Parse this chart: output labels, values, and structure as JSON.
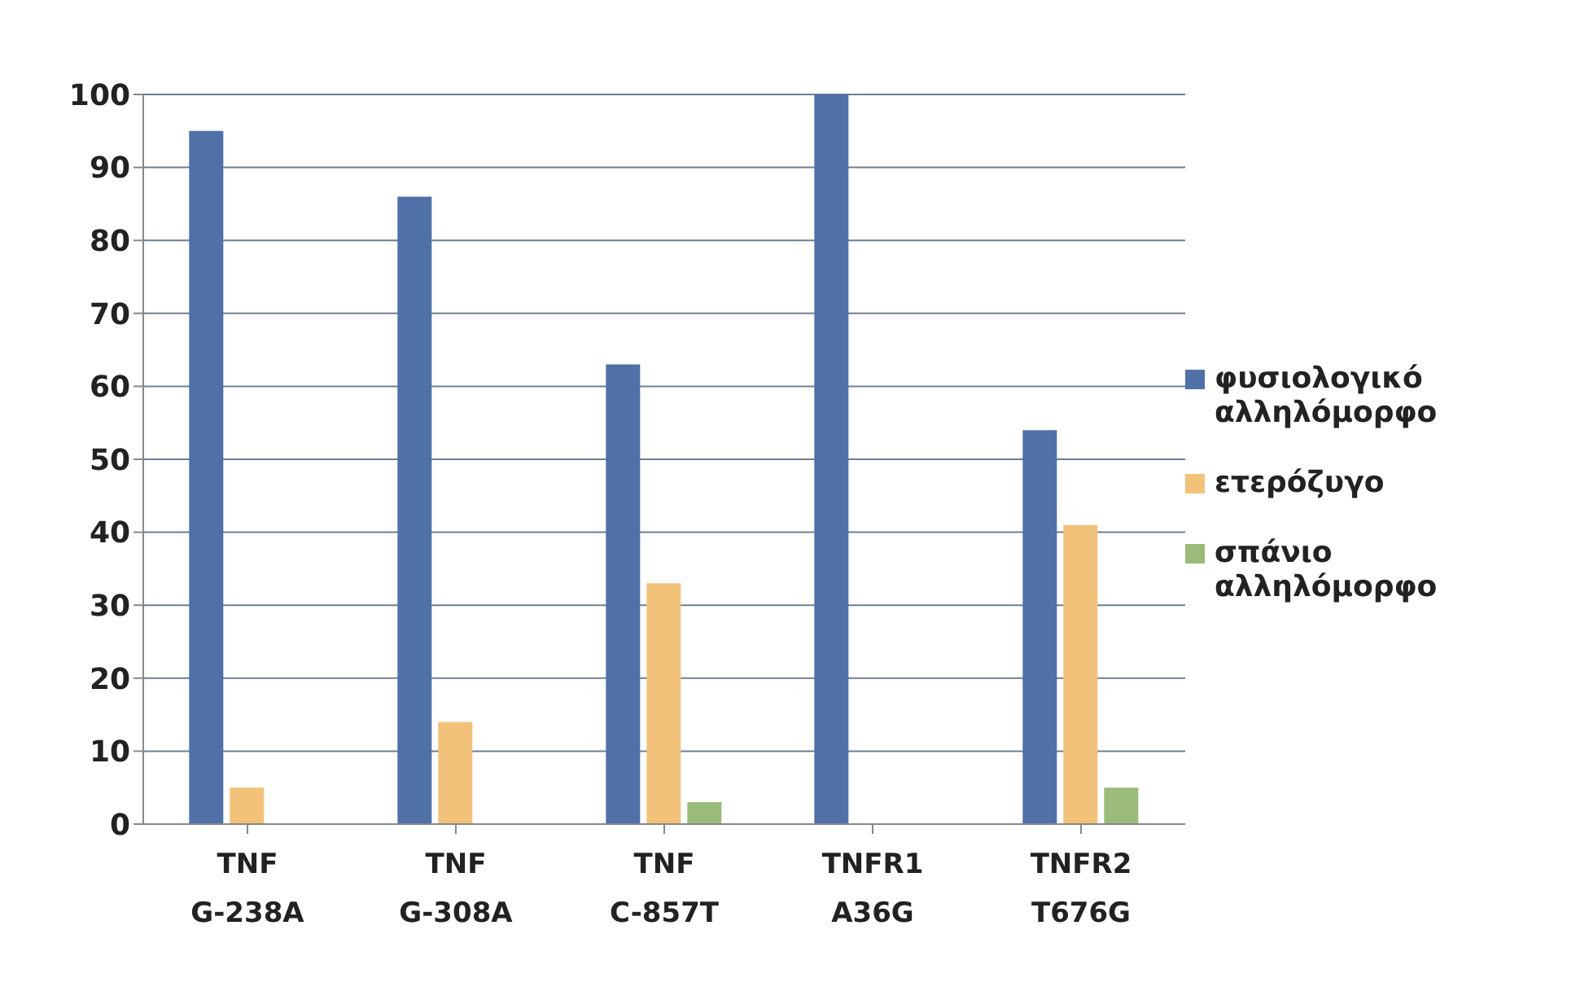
{
  "chart_data": {
    "type": "bar",
    "categories": [
      "TNF G-238A",
      "TNF G-308A",
      "TNF C-857T",
      "TNFR1 A36G",
      "TNFR2 T676G"
    ],
    "series": [
      {
        "name": "φυσιολογικό αλληλόμορφο",
        "color": "#4f71a8",
        "values": [
          95,
          86,
          63,
          100,
          54
        ]
      },
      {
        "name": "ετερόζυγο",
        "color": "#f2c27a",
        "values": [
          5,
          14,
          33,
          0,
          41
        ]
      },
      {
        "name": "σπάνιο αλληλόμορφο",
        "color": "#9bbb7a",
        "values": [
          0,
          0,
          3,
          0,
          5
        ]
      }
    ],
    "ylim": [
      0,
      100
    ],
    "yticks": [
      0,
      10,
      20,
      30,
      40,
      50,
      60,
      70,
      80,
      90,
      100
    ],
    "grid": "y",
    "legend": "right"
  }
}
